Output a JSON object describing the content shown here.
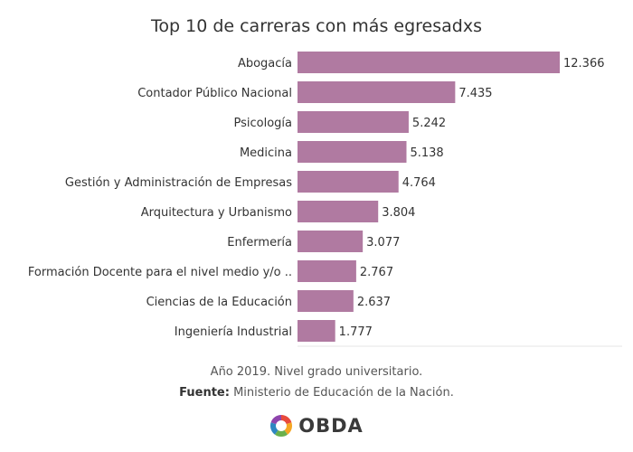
{
  "chart_data": {
    "type": "bar",
    "orientation": "horizontal",
    "title": "Top 10 de carreras con más egresadxs",
    "categories": [
      "Abogacía",
      "Contador Público Nacional",
      "Psicología",
      "Medicina",
      "Gestión y Administración de Empresas",
      "Arquitectura y Urbanismo",
      "Enfermería",
      "Formación Docente para el nivel medio y/o ..",
      "Ciencias de la Educación",
      "Ingeniería Industrial"
    ],
    "values": [
      12366,
      7435,
      5242,
      5138,
      4764,
      3804,
      3077,
      2767,
      2637,
      1777
    ],
    "value_labels": [
      "12.366",
      "7.435",
      "5.242",
      "5.138",
      "4.764",
      "3.804",
      "3.077",
      "2.767",
      "2.637",
      "1.777"
    ],
    "xlim": [
      0,
      12366
    ],
    "bar_color": "#b07aa1",
    "grid": false
  },
  "caption": {
    "line1": "Año 2019. Nivel grado universitario.",
    "source_label": "Fuente:",
    "source_text": "Ministerio de Educación de la Nación."
  },
  "logo": {
    "text": "OBDA",
    "icon": "obda-logo-icon",
    "colors": [
      "#e84a3c",
      "#f5a623",
      "#6ab04c",
      "#2e86c1",
      "#8e44ad"
    ]
  }
}
